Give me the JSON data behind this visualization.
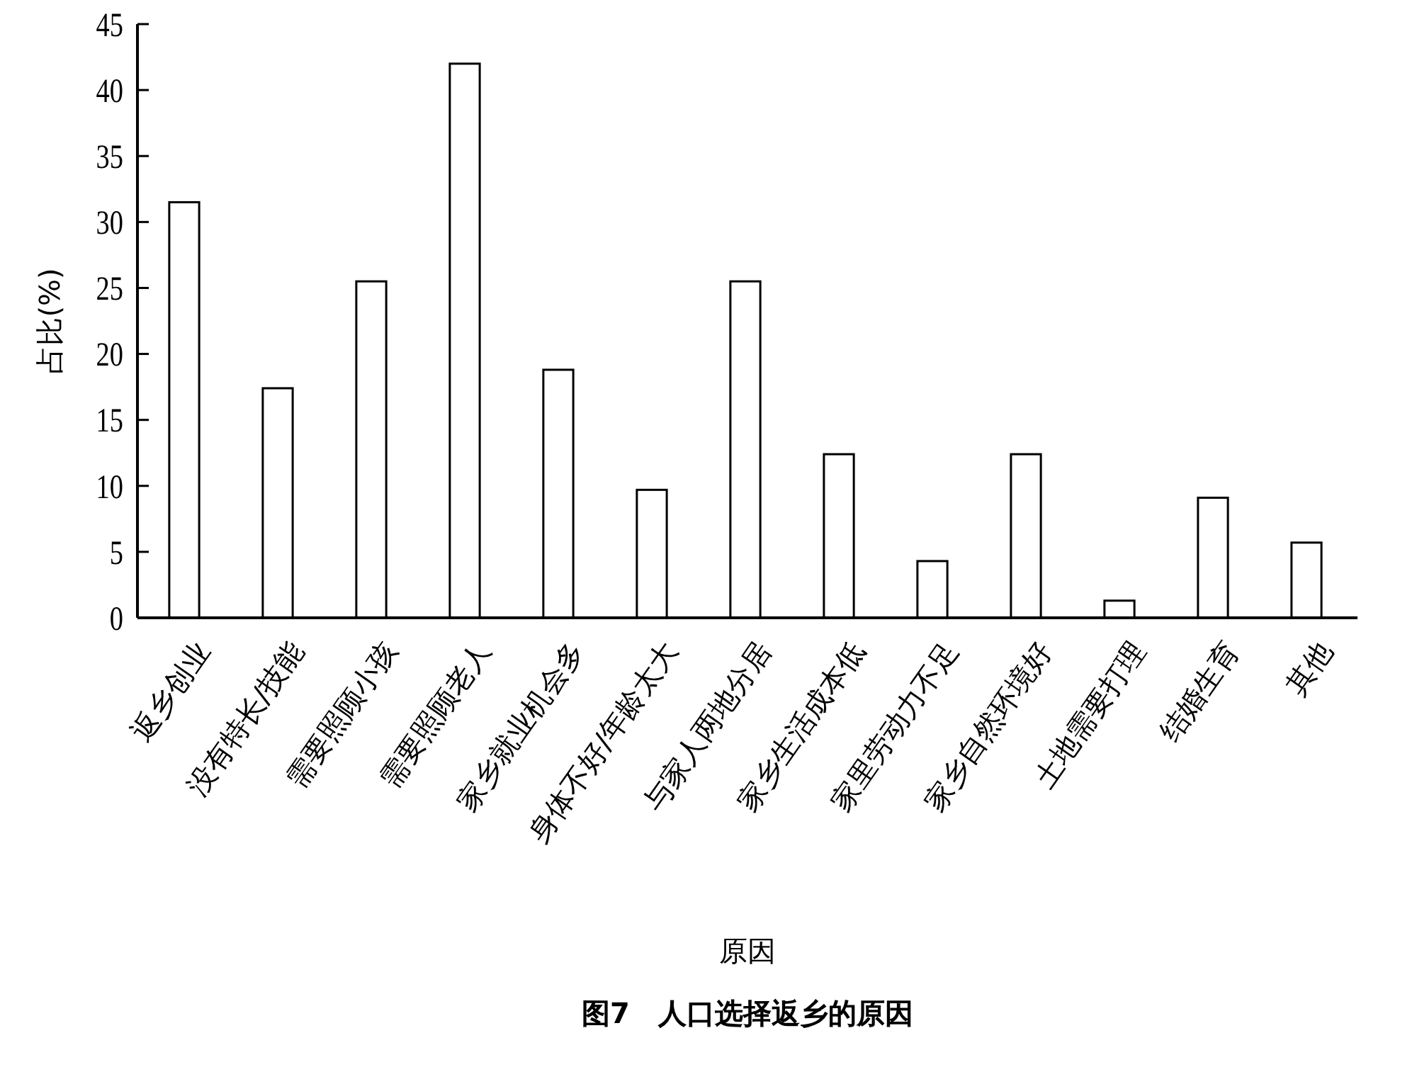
{
  "chart_data": {
    "type": "bar",
    "title": "图7　人口选择返乡的原因",
    "xlabel": "原因",
    "ylabel": "占比(%)",
    "categories": [
      "返乡创业",
      "没有特长/技能",
      "需要照顾小孩",
      "需要照顾老人",
      "家乡就业机会多",
      "身体不好/年龄太大",
      "与家人两地分居",
      "家乡生活成本低",
      "家里劳动力不足",
      "家乡自然环境好",
      "土地需要打理",
      "结婚生育",
      "其他"
    ],
    "values": [
      31.5,
      17.4,
      25.5,
      42.0,
      18.8,
      9.7,
      25.5,
      12.4,
      4.3,
      12.4,
      1.3,
      9.1,
      5.7
    ],
    "color": "#ffffff",
    "ylim": [
      0,
      45
    ],
    "yticks": [
      0,
      5,
      10,
      15,
      20,
      25,
      30,
      35,
      40,
      45
    ],
    "grid": false
  }
}
